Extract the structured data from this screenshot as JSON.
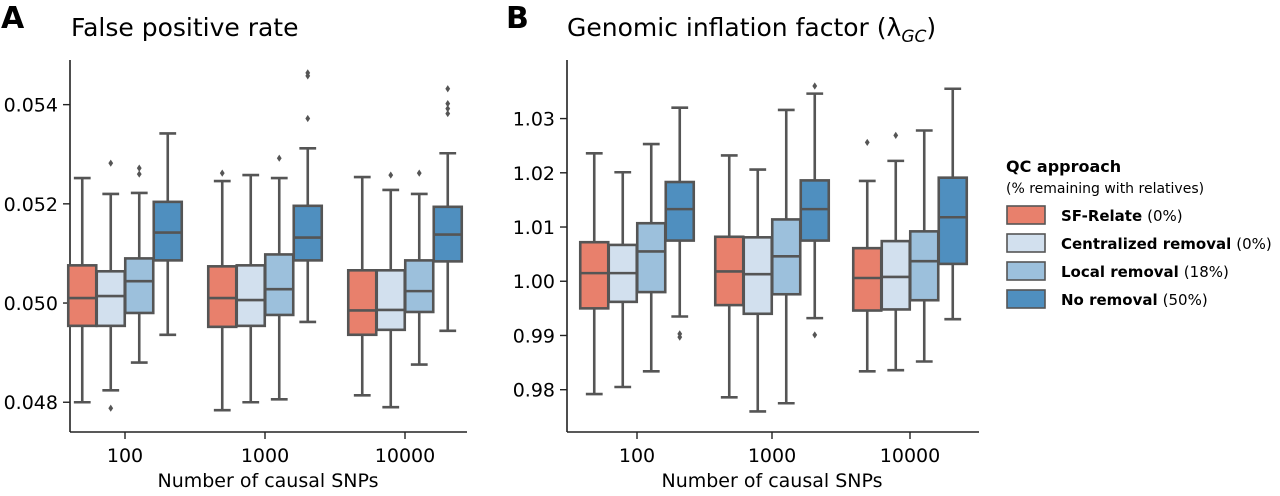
{
  "legend": {
    "title": "QC approach",
    "subtitle": "(% remaining with relatives)",
    "entries": [
      {
        "name": "SF-Relate",
        "pct": "(0%)",
        "color": "#e8806c"
      },
      {
        "name": "Centralized removal",
        "pct": "(0%)",
        "color": "#d2e0ee"
      },
      {
        "name": "Local removal",
        "pct": "(18%)",
        "color": "#9cc0dc"
      },
      {
        "name": "No removal",
        "pct": "(50%)",
        "color": "#4f8fbf"
      }
    ]
  },
  "chart_data": [
    {
      "type": "box",
      "panel_label": "A",
      "title": "False positive rate",
      "xlabel": "Number of causal SNPs",
      "ylabel": "",
      "categories": [
        "100",
        "1000",
        "10000"
      ],
      "ylim": [
        0.0474,
        0.0549
      ],
      "yticks": [
        0.048,
        0.05,
        0.052,
        0.054
      ],
      "ytick_labels": [
        "0.048",
        "0.050",
        "0.052",
        "0.054"
      ],
      "series": [
        {
          "name": "SF-Relate",
          "boxes": [
            {
              "whislo": 0.048,
              "q1": 0.04954,
              "med": 0.0501,
              "q3": 0.05076,
              "whishi": 0.05252,
              "fliers": []
            },
            {
              "whislo": 0.04784,
              "q1": 0.04952,
              "med": 0.0501,
              "q3": 0.05074,
              "whishi": 0.05246,
              "fliers": [
                0.05262
              ]
            },
            {
              "whislo": 0.04814,
              "q1": 0.04936,
              "med": 0.04985,
              "q3": 0.05066,
              "whishi": 0.05254,
              "fliers": []
            }
          ]
        },
        {
          "name": "Centralized removal",
          "boxes": [
            {
              "whislo": 0.04824,
              "q1": 0.04954,
              "med": 0.05014,
              "q3": 0.05064,
              "whishi": 0.0522,
              "fliers": [
                0.04788,
                0.05282
              ]
            },
            {
              "whislo": 0.048,
              "q1": 0.04954,
              "med": 0.05006,
              "q3": 0.05076,
              "whishi": 0.05258,
              "fliers": []
            },
            {
              "whislo": 0.0479,
              "q1": 0.04946,
              "med": 0.04986,
              "q3": 0.05066,
              "whishi": 0.05228,
              "fliers": [
                0.05258
              ]
            }
          ]
        },
        {
          "name": "Local removal",
          "boxes": [
            {
              "whislo": 0.0488,
              "q1": 0.0498,
              "med": 0.05044,
              "q3": 0.0509,
              "whishi": 0.05222,
              "fliers": [
                0.0526,
                0.05272
              ]
            },
            {
              "whislo": 0.04806,
              "q1": 0.04976,
              "med": 0.05028,
              "q3": 0.05098,
              "whishi": 0.05252,
              "fliers": [
                0.05292
              ]
            },
            {
              "whislo": 0.04876,
              "q1": 0.04982,
              "med": 0.05024,
              "q3": 0.05086,
              "whishi": 0.0522,
              "fliers": [
                0.05262
              ]
            }
          ]
        },
        {
          "name": "No removal",
          "boxes": [
            {
              "whislo": 0.04936,
              "q1": 0.05086,
              "med": 0.05142,
              "q3": 0.05204,
              "whishi": 0.05342,
              "fliers": []
            },
            {
              "whislo": 0.04962,
              "q1": 0.05086,
              "med": 0.05132,
              "q3": 0.05196,
              "whishi": 0.05312,
              "fliers": [
                0.05372,
                0.05458,
                0.05464
              ]
            },
            {
              "whislo": 0.04944,
              "q1": 0.05084,
              "med": 0.05138,
              "q3": 0.05194,
              "whishi": 0.05302,
              "fliers": [
                0.05382,
                0.05392,
                0.05402,
                0.05432
              ]
            }
          ]
        }
      ]
    },
    {
      "type": "box",
      "panel_label": "B",
      "title": "Genomic inflation factor (λ",
      "title_sub": "GC",
      "title_end": ")",
      "xlabel": "Number of causal SNPs",
      "ylabel": "",
      "categories": [
        "100",
        "1000",
        "10000"
      ],
      "ylim": [
        0.9722,
        1.0408
      ],
      "yticks": [
        0.98,
        0.99,
        1.0,
        1.01,
        1.02,
        1.03
      ],
      "ytick_labels": [
        "0.98",
        "0.99",
        "1.00",
        "1.01",
        "1.02",
        "1.03"
      ],
      "series": [
        {
          "name": "SF-Relate",
          "boxes": [
            {
              "whislo": 0.9792,
              "q1": 0.995,
              "med": 1.0015,
              "q3": 1.0072,
              "whishi": 1.0236,
              "fliers": []
            },
            {
              "whislo": 0.9786,
              "q1": 0.9956,
              "med": 1.0018,
              "q3": 1.0082,
              "whishi": 1.0232,
              "fliers": []
            },
            {
              "whislo": 0.9834,
              "q1": 0.9946,
              "med": 1.0006,
              "q3": 1.0061,
              "whishi": 1.0185,
              "fliers": [
                1.0256
              ]
            }
          ]
        },
        {
          "name": "Centralized removal",
          "boxes": [
            {
              "whislo": 0.9805,
              "q1": 0.9962,
              "med": 1.0015,
              "q3": 1.0067,
              "whishi": 1.0201,
              "fliers": []
            },
            {
              "whislo": 0.976,
              "q1": 0.994,
              "med": 1.0013,
              "q3": 1.0081,
              "whishi": 1.0206,
              "fliers": []
            },
            {
              "whislo": 0.9836,
              "q1": 0.9948,
              "med": 1.0008,
              "q3": 1.0074,
              "whishi": 1.0222,
              "fliers": [
                1.0269
              ]
            }
          ]
        },
        {
          "name": "Local removal",
          "boxes": [
            {
              "whislo": 0.9834,
              "q1": 0.998,
              "med": 1.0055,
              "q3": 1.0107,
              "whishi": 1.0253,
              "fliers": []
            },
            {
              "whislo": 0.9775,
              "q1": 0.9976,
              "med": 1.0046,
              "q3": 1.0114,
              "whishi": 1.0316,
              "fliers": []
            },
            {
              "whislo": 0.9852,
              "q1": 0.9965,
              "med": 1.0037,
              "q3": 1.0092,
              "whishi": 1.0278,
              "fliers": []
            }
          ]
        },
        {
          "name": "No removal",
          "boxes": [
            {
              "whislo": 0.9935,
              "q1": 1.0075,
              "med": 1.0133,
              "q3": 1.0183,
              "whishi": 1.032,
              "fliers": [
                0.9897,
                0.9903
              ]
            },
            {
              "whislo": 0.9932,
              "q1": 1.0075,
              "med": 1.0133,
              "q3": 1.0186,
              "whishi": 1.0346,
              "fliers": [
                0.9901,
                1.036
              ]
            },
            {
              "whislo": 0.993,
              "q1": 1.0032,
              "med": 1.0118,
              "q3": 1.0191,
              "whishi": 1.0355,
              "fliers": []
            }
          ]
        }
      ]
    }
  ]
}
